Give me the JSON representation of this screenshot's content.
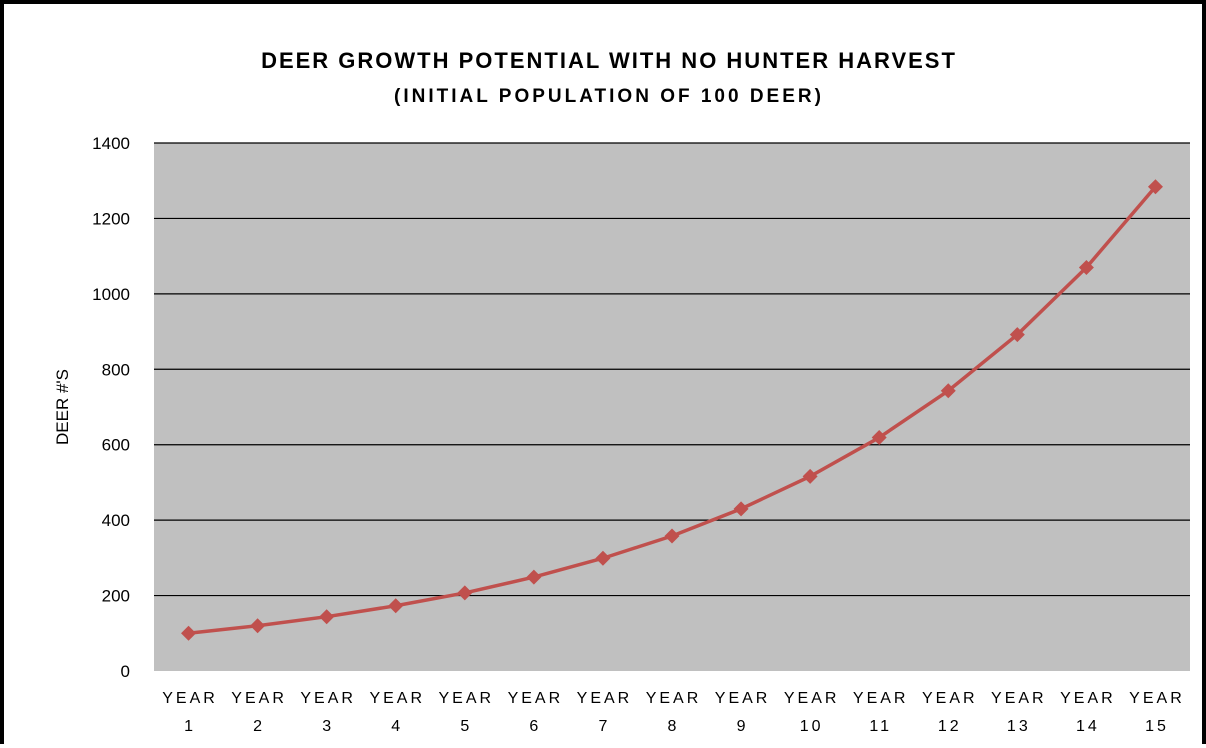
{
  "chart_data": {
    "type": "line",
    "title": "DEER GROWTH POTENTIAL WITH NO HUNTER HARVEST",
    "subtitle": "(INITIAL POPULATION OF 100 DEER)",
    "xlabel": "",
    "ylabel": "DEER #'S",
    "categories": [
      [
        "YEAR",
        "1"
      ],
      [
        "YEAR",
        "2"
      ],
      [
        "YEAR",
        "3"
      ],
      [
        "YEAR",
        "4"
      ],
      [
        "YEAR",
        "5"
      ],
      [
        "YEAR",
        "6"
      ],
      [
        "YEAR",
        "7"
      ],
      [
        "YEAR",
        "8"
      ],
      [
        "YEAR",
        "9"
      ],
      [
        "YEAR",
        "10"
      ],
      [
        "YEAR",
        "11"
      ],
      [
        "YEAR",
        "12"
      ],
      [
        "YEAR",
        "13"
      ],
      [
        "YEAR",
        "14"
      ],
      [
        "YEAR",
        "15"
      ]
    ],
    "series": [
      {
        "values": [
          100,
          120,
          144,
          173,
          207,
          249,
          299,
          358,
          430,
          516,
          619,
          743,
          892,
          1070,
          1284
        ]
      }
    ],
    "ylim": [
      0,
      1400
    ],
    "yticks": [
      0,
      200,
      400,
      600,
      800,
      1000,
      1200,
      1400
    ],
    "grid": true,
    "legend": "none",
    "colors": {
      "plot_background": "#c0c0c0",
      "series_line": "#c0504d",
      "gridline": "#000000"
    }
  }
}
